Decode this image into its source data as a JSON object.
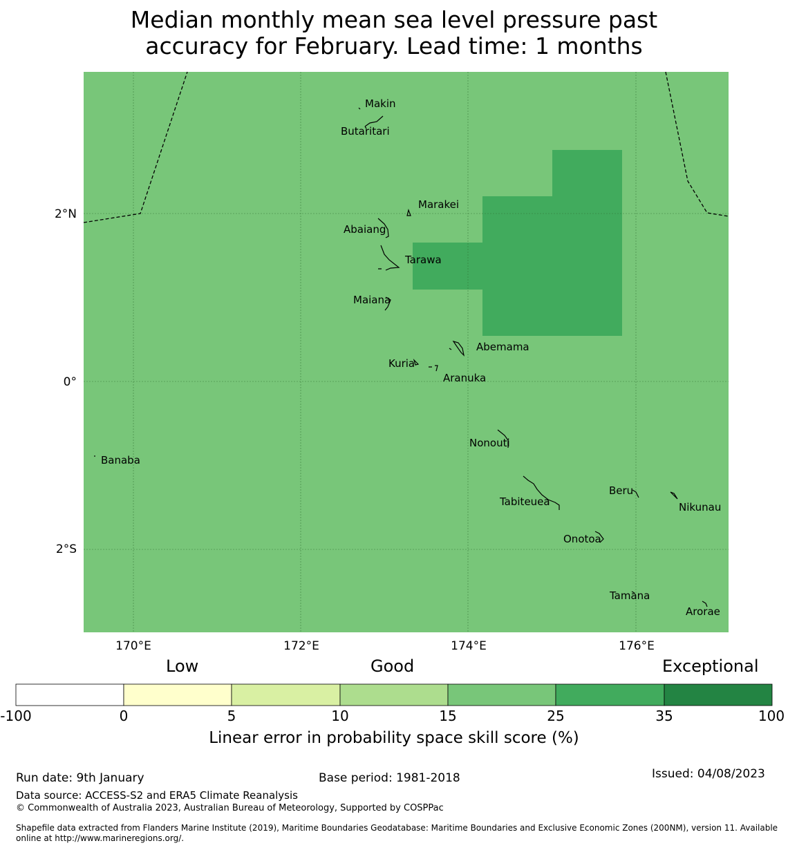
{
  "title": {
    "line1": "Median monthly mean sea level pressure past",
    "line2": "accuracy for February. Lead time: 1 months"
  },
  "map": {
    "background_color": "#78c679",
    "highlight_color": "#41ab5d",
    "lon_labels": [
      "170°E",
      "172°E",
      "174°E",
      "176°E"
    ],
    "lat_labels": [
      "2°N",
      "0°",
      "2°S"
    ],
    "places": [
      "Makin",
      "Butaritari",
      "Marakei",
      "Abaiang",
      "Tarawa",
      "Maiana",
      "Abemama",
      "Kuria",
      "Aranuka",
      "Banaba",
      "Nonouti",
      "Beru",
      "Tabiteuea",
      "Nikunau",
      "Onotoa",
      "Tamana",
      "Arorae"
    ]
  },
  "colorbar": {
    "category_labels": [
      "Low",
      "Good",
      "Exceptional"
    ],
    "tick_labels": [
      "-100",
      "0",
      "5",
      "10",
      "15",
      "25",
      "35",
      "100"
    ],
    "colors": [
      "#ffffff",
      "#ffffcc",
      "#d9f0a3",
      "#addd8e",
      "#78c679",
      "#41ab5d",
      "#238443"
    ],
    "title": "Linear error in probability space skill score (%)"
  },
  "footer": {
    "run_date": "Run date: 9th January",
    "base_period": "Base period: 1981-2018",
    "issued": "Issued: 04/08/2023",
    "data_source": "Data source: ACCESS-S2 and ERA5 Climate Reanalysis",
    "copyright": "© Commonwealth of Australia 2023, Australian Bureau of Meteorology, Supported by COSPPac",
    "shapefile_line1": "Shapefile data extracted from Flanders Marine Institute (2019), Maritime Boundaries Geodatabase: Maritime Boundaries and Exclusive Economic Zones (200NM), version 11. Available",
    "shapefile_line2": "online at http://www.marineregions.org/."
  }
}
